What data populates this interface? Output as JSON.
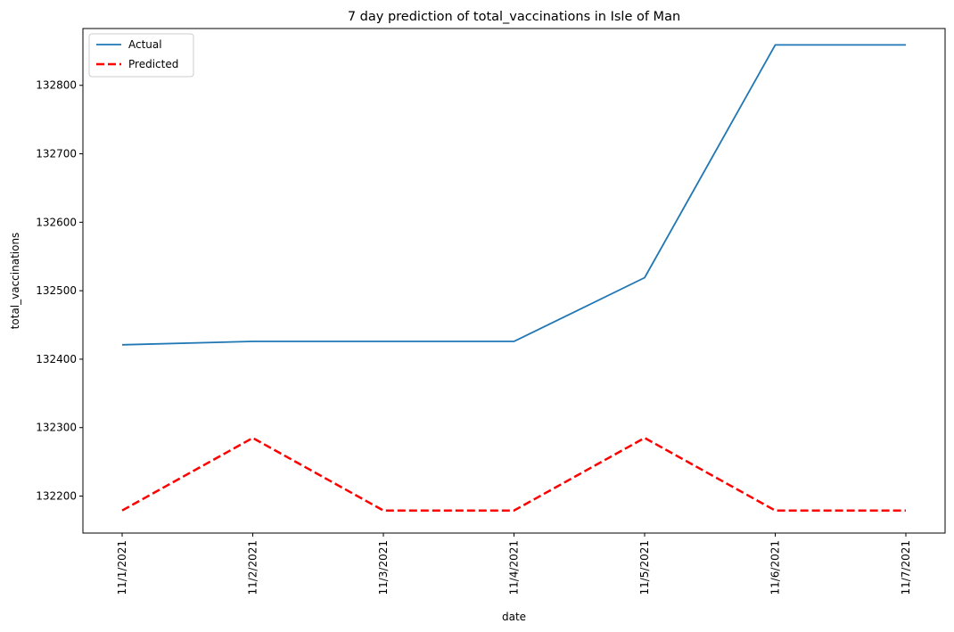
{
  "chart_data": {
    "type": "line",
    "title": "7 day prediction of total_vaccinations in Isle of Man",
    "xlabel": "date",
    "ylabel": "total_vaccinations",
    "categories": [
      "11/1/2021",
      "11/2/2021",
      "11/3/2021",
      "11/4/2021",
      "11/5/2021",
      "11/6/2021",
      "11/7/2021"
    ],
    "ylim": [
      132146,
      132883
    ],
    "yticks": [
      132200,
      132300,
      132400,
      132500,
      132600,
      132700,
      132800
    ],
    "series": [
      {
        "name": "Actual",
        "color": "#1f77b4",
        "dash": "solid",
        "values": [
          132421,
          132426,
          132426,
          132426,
          132519,
          132859,
          132859
        ]
      },
      {
        "name": "Predicted",
        "color": "#ff0000",
        "dash": "dashed",
        "values": [
          132179,
          132285,
          132179,
          132179,
          132285,
          132179,
          132179
        ]
      }
    ],
    "grid": false,
    "legend": "top-left"
  }
}
